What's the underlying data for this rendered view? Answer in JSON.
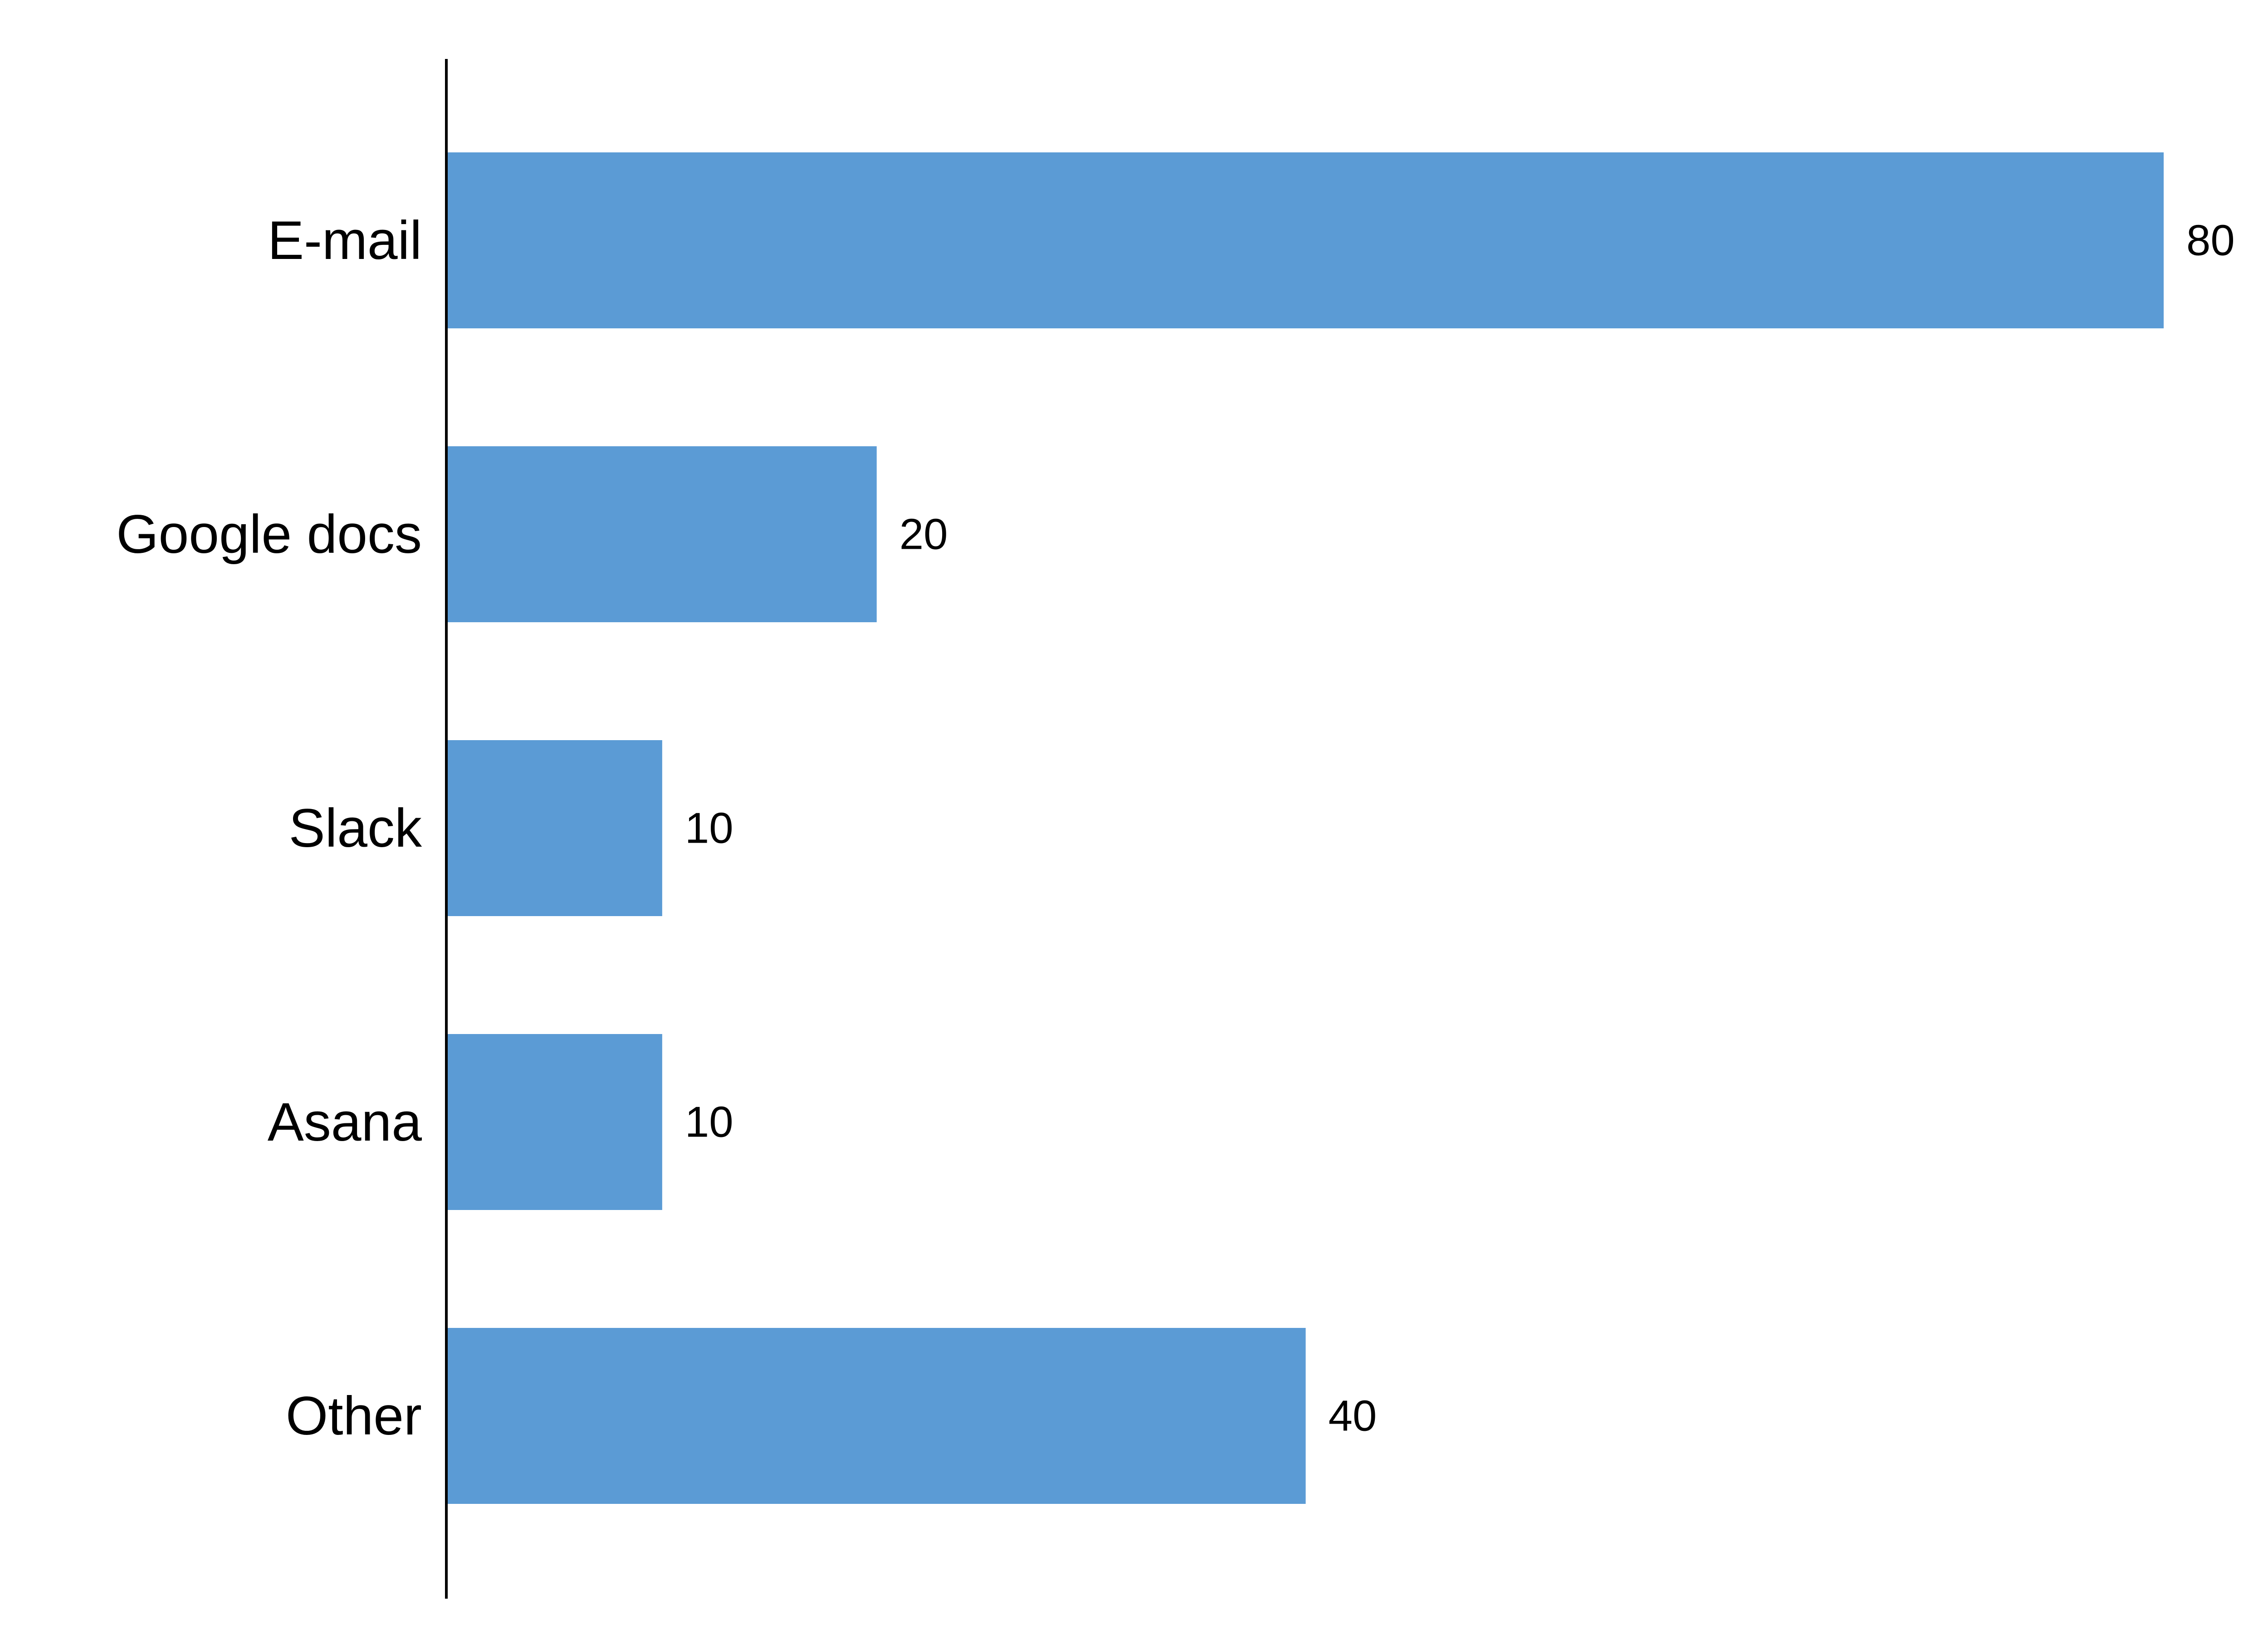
{
  "chart_data": {
    "type": "bar",
    "orientation": "horizontal",
    "categories": [
      "E-mail",
      "Google docs",
      "Slack",
      "Asana",
      "Other"
    ],
    "values": [
      80,
      20,
      10,
      10,
      40
    ],
    "data_labels": [
      "80",
      "20",
      "10",
      "10",
      "40"
    ],
    "title": "",
    "xlabel": "",
    "ylabel": "",
    "xlim": [
      0,
      80
    ],
    "grid": false,
    "legend": "none",
    "bar_color": "#5B9BD5",
    "axis_color": "#000000"
  }
}
